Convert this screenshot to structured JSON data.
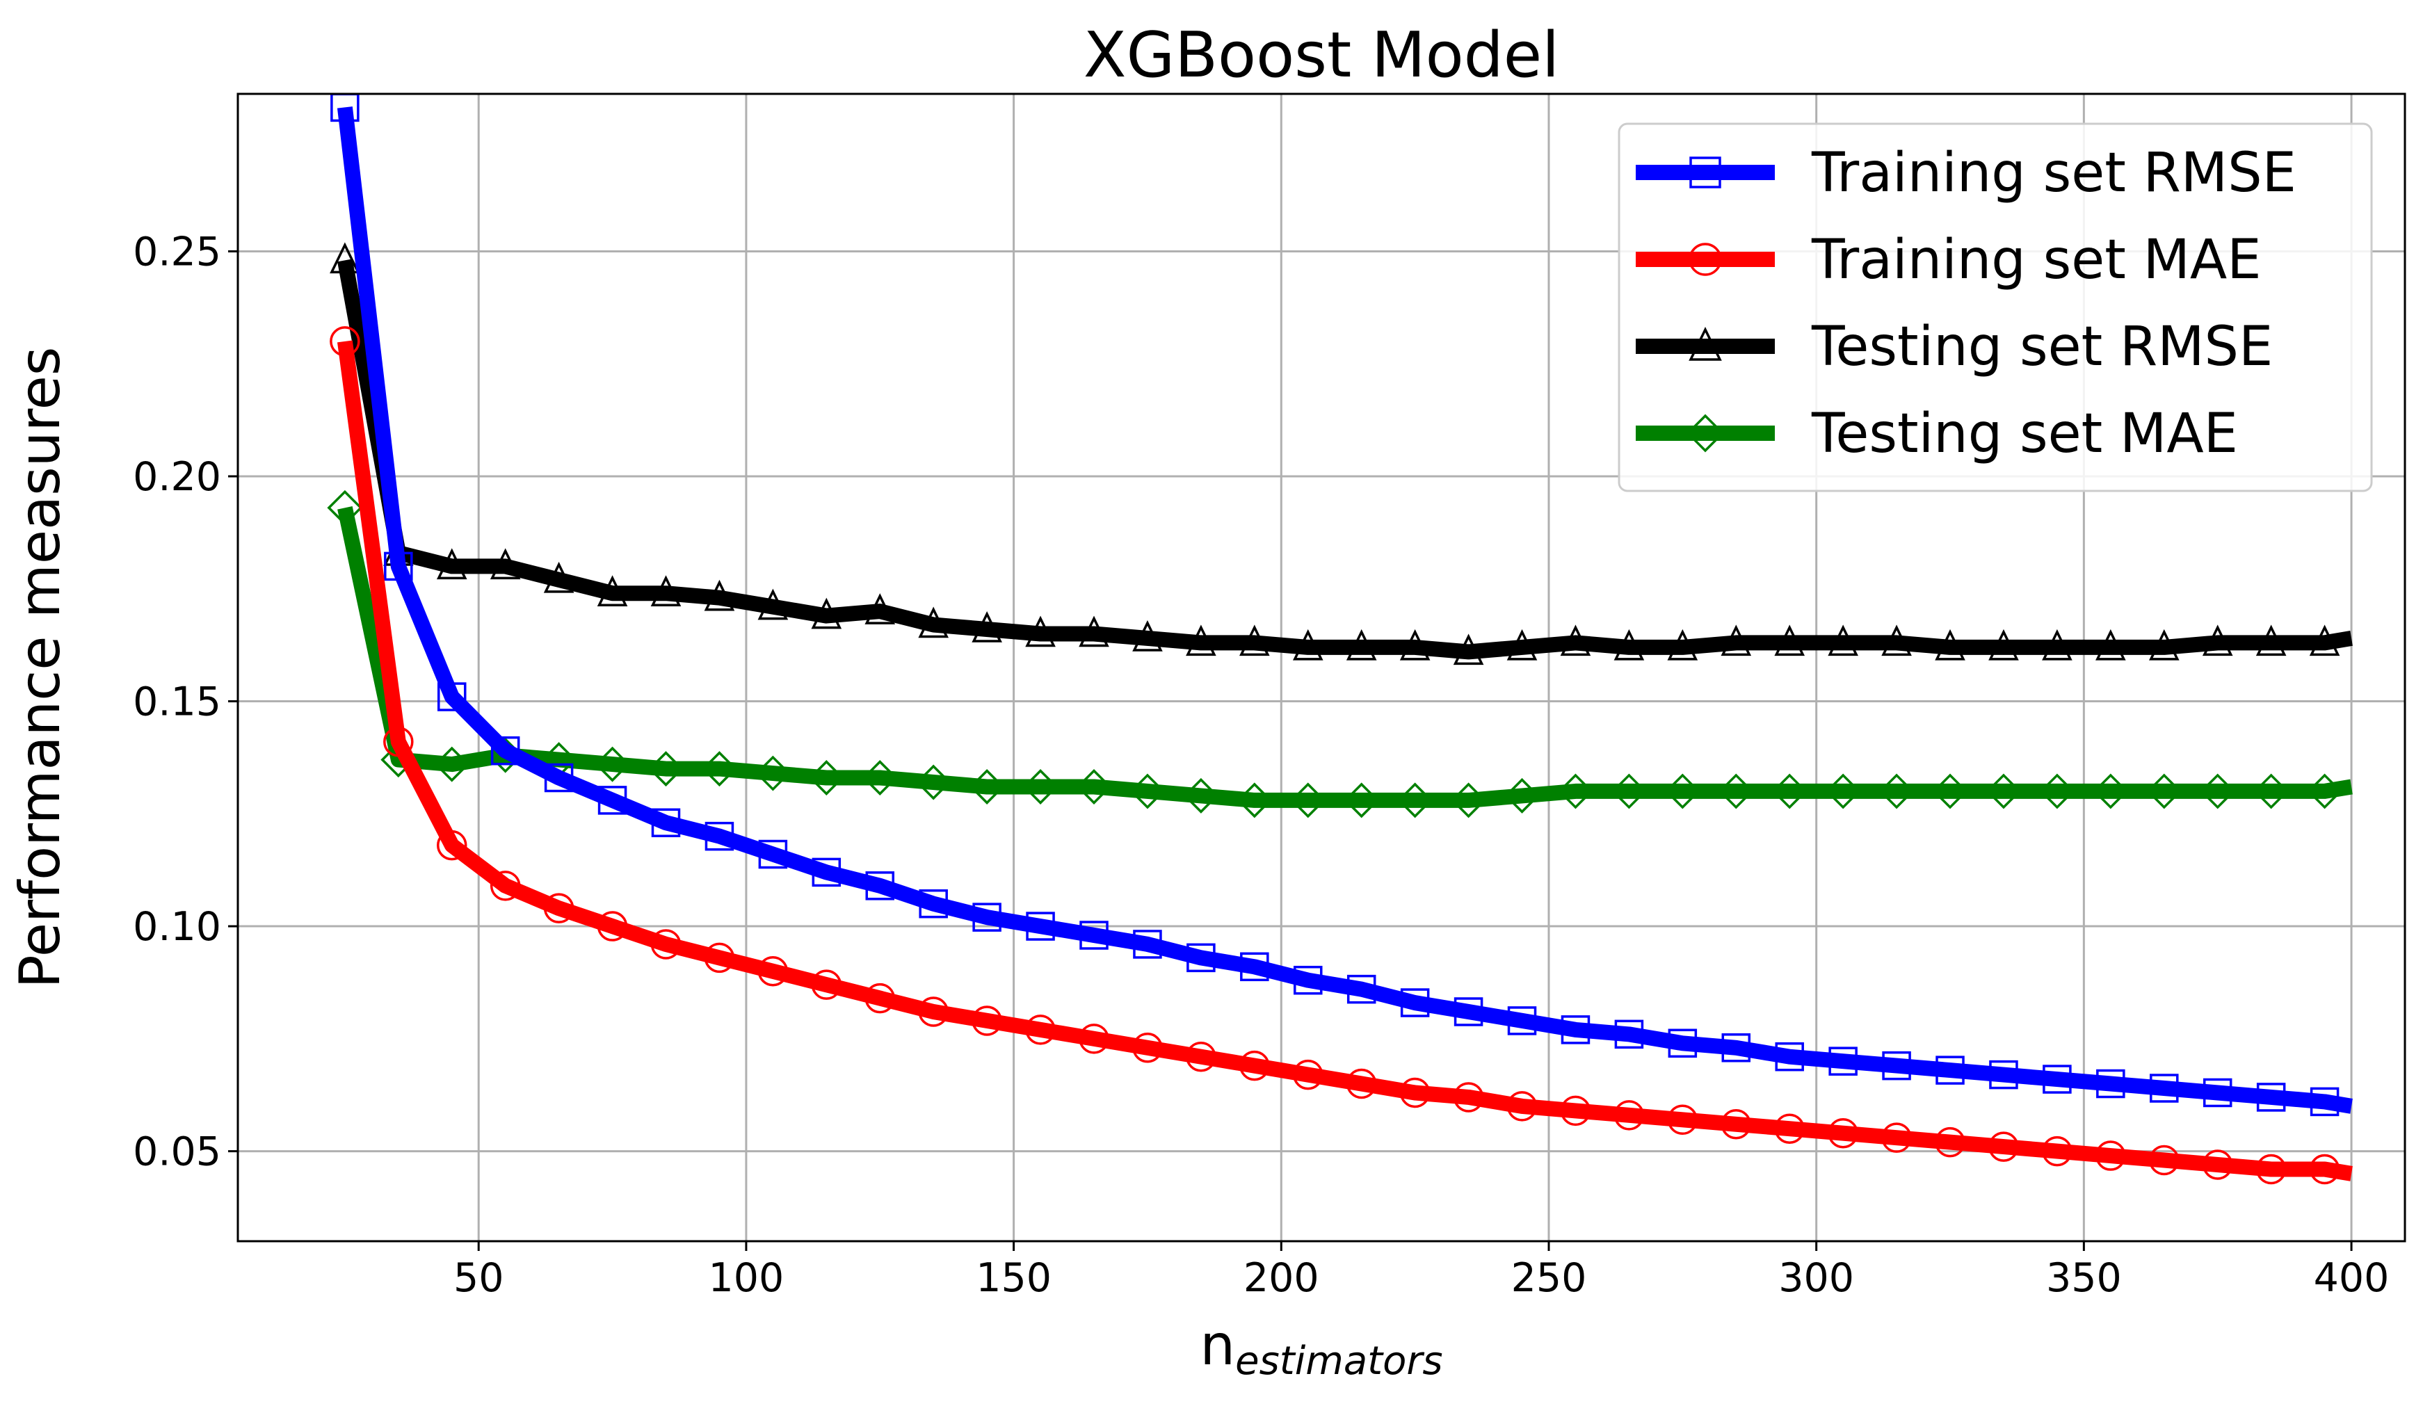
{
  "chart_data": {
    "type": "line",
    "title": "XGBoost Model",
    "xlabel": {
      "main": "n",
      "subscript": "estimators"
    },
    "ylabel": "Performance measures",
    "xlim": [
      5,
      410
    ],
    "ylim": [
      0.03,
      0.285
    ],
    "xticks": [
      50,
      100,
      150,
      200,
      250,
      300,
      350,
      400
    ],
    "yticks": [
      0.05,
      0.1,
      0.15,
      0.2,
      0.25
    ],
    "xtick_labels": [
      "50",
      "100",
      "150",
      "200",
      "250",
      "300",
      "350",
      "400"
    ],
    "ytick_labels": [
      "0.05",
      "0.10",
      "0.15",
      "0.20",
      "0.25"
    ],
    "grid": true,
    "legend_position": "top-right",
    "x": [
      25,
      35,
      45,
      55,
      65,
      75,
      85,
      95,
      105,
      115,
      125,
      135,
      145,
      155,
      165,
      175,
      185,
      195,
      205,
      215,
      225,
      235,
      245,
      255,
      265,
      275,
      285,
      295,
      305,
      315,
      325,
      335,
      345,
      355,
      365,
      375,
      385,
      395
    ],
    "series": [
      {
        "name": "Training set RMSE",
        "color": "#0000ff",
        "marker": "square",
        "values": [
          0.282,
          0.18,
          0.151,
          0.139,
          0.133,
          0.128,
          0.123,
          0.12,
          0.116,
          0.112,
          0.109,
          0.105,
          0.102,
          0.1,
          0.098,
          0.096,
          0.093,
          0.091,
          0.088,
          0.086,
          0.083,
          0.081,
          0.079,
          0.077,
          0.076,
          0.074,
          0.073,
          0.071,
          0.07,
          0.069,
          0.068,
          0.067,
          0.066,
          0.065,
          0.064,
          0.063,
          0.062,
          0.061
        ],
        "end_value": 0.06
      },
      {
        "name": "Training set MAE",
        "color": "#ff0000",
        "marker": "circle",
        "values": [
          0.23,
          0.141,
          0.118,
          0.109,
          0.104,
          0.1,
          0.096,
          0.093,
          0.09,
          0.087,
          0.084,
          0.081,
          0.079,
          0.077,
          0.075,
          0.073,
          0.071,
          0.069,
          0.067,
          0.065,
          0.063,
          0.062,
          0.06,
          0.059,
          0.058,
          0.057,
          0.056,
          0.055,
          0.054,
          0.053,
          0.052,
          0.051,
          0.05,
          0.049,
          0.048,
          0.047,
          0.046,
          0.046
        ],
        "end_value": 0.045
      },
      {
        "name": "Testing set RMSE",
        "color": "#000000",
        "marker": "triangle",
        "values": [
          0.248,
          0.183,
          0.18,
          0.18,
          0.177,
          0.174,
          0.174,
          0.173,
          0.171,
          0.169,
          0.17,
          0.167,
          0.166,
          0.165,
          0.165,
          0.164,
          0.163,
          0.163,
          0.162,
          0.162,
          0.162,
          0.161,
          0.162,
          0.163,
          0.162,
          0.162,
          0.163,
          0.163,
          0.163,
          0.163,
          0.162,
          0.162,
          0.162,
          0.162,
          0.162,
          0.163,
          0.163,
          0.163
        ],
        "end_value": 0.164
      },
      {
        "name": "Testing set MAE",
        "color": "#008000",
        "marker": "diamond",
        "values": [
          0.193,
          0.137,
          0.136,
          0.138,
          0.137,
          0.136,
          0.135,
          0.135,
          0.134,
          0.133,
          0.133,
          0.132,
          0.131,
          0.131,
          0.131,
          0.13,
          0.129,
          0.128,
          0.128,
          0.128,
          0.128,
          0.128,
          0.129,
          0.13,
          0.13,
          0.13,
          0.13,
          0.13,
          0.13,
          0.13,
          0.13,
          0.13,
          0.13,
          0.13,
          0.13,
          0.13,
          0.13,
          0.13
        ],
        "end_value": 0.131
      }
    ]
  }
}
